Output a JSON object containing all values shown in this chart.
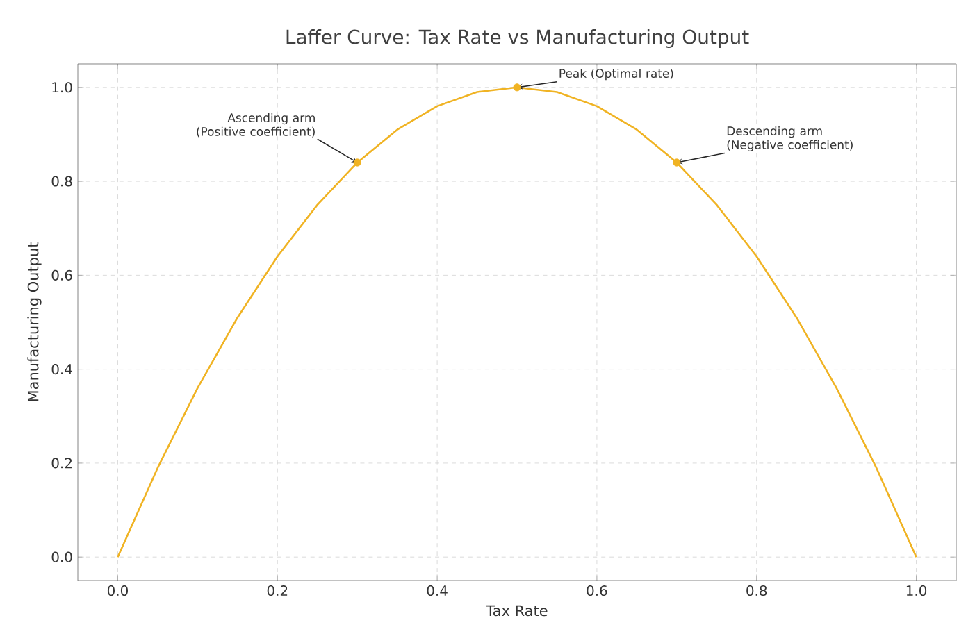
{
  "chart_data": {
    "type": "line",
    "title": "Laffer Curve: Tax Rate vs Manufacturing Output",
    "xlabel": "Tax Rate",
    "ylabel": "Manufacturing Output",
    "series": [
      {
        "color": "#f0b323",
        "marker": "none",
        "x": [
          0,
          0.05,
          0.1,
          0.15,
          0.2,
          0.25,
          0.3,
          0.35,
          0.4,
          0.45,
          0.5,
          0.55,
          0.6,
          0.65,
          0.7,
          0.75,
          0.8,
          0.85,
          0.9,
          0.95,
          1.0
        ],
        "values": [
          0,
          0.19,
          0.36,
          0.51,
          0.64,
          0.75,
          0.84,
          0.91,
          0.96,
          0.99,
          1.0,
          0.99,
          0.96,
          0.91,
          0.84,
          0.75,
          0.64,
          0.51,
          0.36,
          0.19,
          0
        ]
      },
      {
        "type": "scatter",
        "color": "#f0b323",
        "marker": "circle",
        "x": [
          0.3,
          0.5,
          0.7
        ],
        "values": [
          0.84,
          1.0,
          0.84
        ]
      }
    ],
    "annotations": [
      {
        "text": "Ascending arm (Positive coefficient)",
        "x": 0.3,
        "y": 0.84
      },
      {
        "text": "Peak (Optimal rate)",
        "x": 0.5,
        "y": 1.0
      },
      {
        "text": "Descending arm (Negative coefficient)",
        "x": 0.7,
        "y": 0.84
      }
    ],
    "xlim": [
      -0.05,
      1.05
    ],
    "ylim": [
      -0.05,
      1.05
    ],
    "xticks": [
      {
        "value": 0,
        "label": "0.0"
      },
      {
        "value": 0.2,
        "label": "0.2"
      },
      {
        "value": 0.4,
        "label": "0.4"
      },
      {
        "value": 0.6,
        "label": "0.6"
      },
      {
        "value": 0.8,
        "label": "0.8"
      },
      {
        "value": 1.0,
        "label": "1.0"
      }
    ],
    "yticks": [
      {
        "value": 0,
        "label": "0.0"
      },
      {
        "value": 0.2,
        "label": "0.2"
      },
      {
        "value": 0.4,
        "label": "0.4"
      },
      {
        "value": 0.6,
        "label": "0.6"
      },
      {
        "value": 0.8,
        "label": "0.8"
      },
      {
        "value": 1.0,
        "label": "1.0"
      }
    ],
    "grid": true
  }
}
